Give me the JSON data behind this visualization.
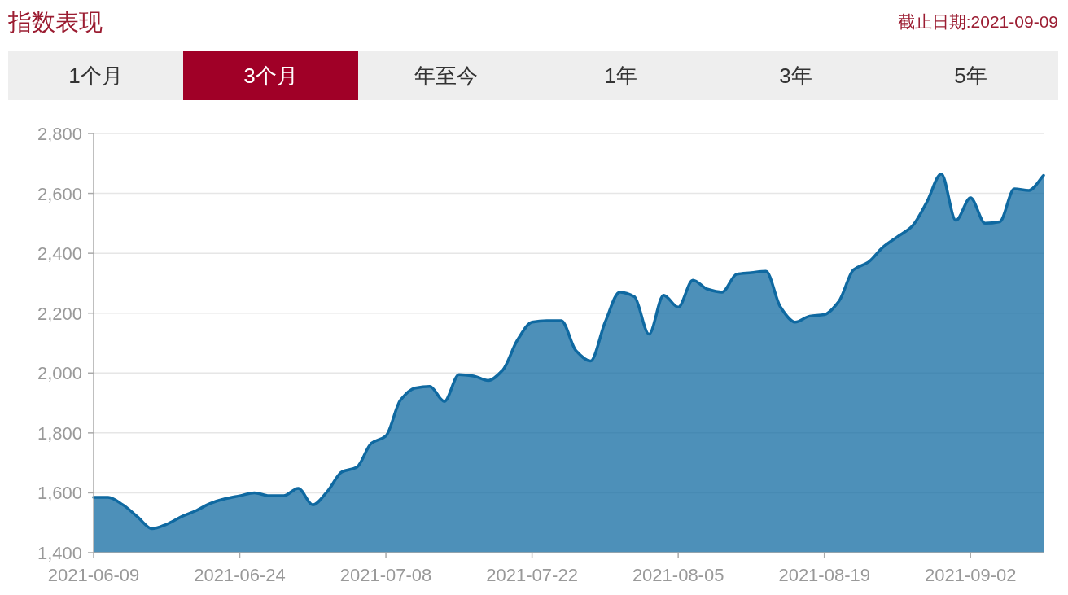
{
  "chart_data": {
    "type": "area",
    "title": "指数表现",
    "annotations": [
      "截止日期:2021-09-09",
      "1个月",
      "3个月",
      "年至今",
      "1年",
      "3年",
      "5年"
    ],
    "categories": [
      "2021-06-09",
      null,
      null,
      null,
      null,
      null,
      null,
      null,
      null,
      null,
      "2021-06-24",
      null,
      null,
      null,
      null,
      null,
      null,
      null,
      null,
      null,
      "2021-07-08",
      null,
      null,
      null,
      null,
      null,
      null,
      null,
      null,
      null,
      "2021-07-22",
      null,
      null,
      null,
      null,
      null,
      null,
      null,
      null,
      null,
      "2021-08-05",
      null,
      null,
      null,
      null,
      null,
      null,
      null,
      null,
      null,
      "2021-08-19",
      null,
      null,
      null,
      null,
      null,
      null,
      null,
      null,
      null,
      "2021-09-02",
      null,
      null,
      null,
      null,
      null
    ],
    "series": [
      {
        "color": "#0f69a1",
        "values": [
          1585,
          1585,
          1560,
          1520,
          1480,
          1495,
          1520,
          1540,
          1565,
          1580,
          1590,
          1600,
          1590,
          1590,
          1615,
          1560,
          1605,
          1670,
          1685,
          1765,
          1790,
          1910,
          1950,
          1955,
          1905,
          1995,
          1990,
          1975,
          2010,
          2110,
          2170,
          2175,
          2175,
          2075,
          2040,
          2170,
          2270,
          2255,
          2130,
          2260,
          2220,
          2310,
          2280,
          2270,
          2330,
          2335,
          2340,
          2220,
          2170,
          2190,
          2195,
          2240,
          2345,
          2370,
          2420,
          2455,
          2490,
          2570,
          2665,
          2510,
          2585,
          2500,
          2505,
          2615,
          2610,
          2660
        ]
      }
    ],
    "ylim": [
      1400,
      2800
    ],
    "yticks": [
      {
        "value": 1400,
        "label": "1,400"
      },
      {
        "value": 1600,
        "label": "1,600"
      },
      {
        "value": 1800,
        "label": "1,800"
      },
      {
        "value": 2000,
        "label": "2,000"
      },
      {
        "value": 2200,
        "label": "2,200"
      },
      {
        "value": 2400,
        "label": "2,400"
      },
      {
        "value": 2600,
        "label": "2,600"
      },
      {
        "value": 2800,
        "label": "2,800"
      }
    ],
    "grid": "y"
  }
}
